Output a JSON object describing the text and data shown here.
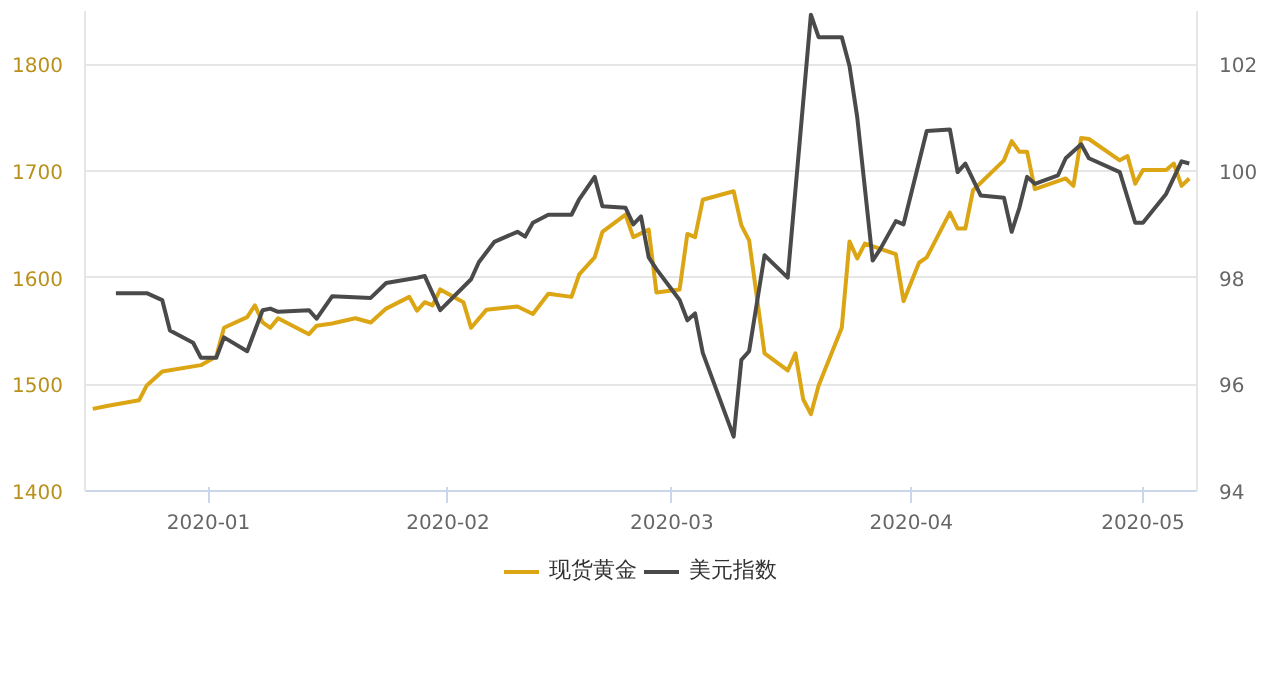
{
  "chart_data": {
    "type": "line",
    "xlim": [
      "2019-12-16",
      "2020-05-08"
    ],
    "xticks": [
      "2020-01",
      "2020-02",
      "2020-03",
      "2020-04",
      "2020-05"
    ],
    "ylim": [
      1400,
      1850
    ],
    "yticks": [
      1400,
      1500,
      1600,
      1700,
      1800
    ],
    "y2lim": [
      94,
      103
    ],
    "y2ticks": [
      94,
      96,
      98,
      100,
      102
    ],
    "grid": "y",
    "legend": "bottom",
    "marker": "none",
    "line_style": "solid",
    "series": [
      {
        "name": "现货黄金",
        "color": "#dba514",
        "x": [
          "2019-12-17",
          "2019-12-19",
          "2019-12-23",
          "2019-12-24",
          "2019-12-26",
          "2019-12-31",
          "2020-01-02",
          "2020-01-03",
          "2020-01-06",
          "2020-01-07",
          "2020-01-08",
          "2020-01-09",
          "2020-01-10",
          "2020-01-14",
          "2020-01-15",
          "2020-01-17",
          "2020-01-20",
          "2020-01-22",
          "2020-01-24",
          "2020-01-27",
          "2020-01-28",
          "2020-01-29",
          "2020-01-30",
          "2020-01-31",
          "2020-02-03",
          "2020-02-04",
          "2020-02-06",
          "2020-02-10",
          "2020-02-12",
          "2020-02-14",
          "2020-02-17",
          "2020-02-18",
          "2020-02-20",
          "2020-02-21",
          "2020-02-24",
          "2020-02-25",
          "2020-02-27",
          "2020-02-28",
          "2020-03-02",
          "2020-03-03",
          "2020-03-04",
          "2020-03-05",
          "2020-03-09",
          "2020-03-10",
          "2020-03-11",
          "2020-03-13",
          "2020-03-16",
          "2020-03-17",
          "2020-03-18",
          "2020-03-19",
          "2020-03-20",
          "2020-03-23",
          "2020-03-24",
          "2020-03-25",
          "2020-03-26",
          "2020-03-30",
          "2020-03-31",
          "2020-04-02",
          "2020-04-03",
          "2020-04-06",
          "2020-04-07",
          "2020-04-08",
          "2020-04-09",
          "2020-04-13",
          "2020-04-14",
          "2020-04-15",
          "2020-04-16",
          "2020-04-17",
          "2020-04-21",
          "2020-04-22",
          "2020-04-23",
          "2020-04-24",
          "2020-04-28",
          "2020-04-29",
          "2020-04-30",
          "2020-05-01",
          "2020-05-04",
          "2020-05-05",
          "2020-05-06",
          "2020-05-07"
        ],
        "values": [
          1477,
          1480,
          1485,
          1499,
          1512,
          1518,
          1526,
          1553,
          1563,
          1574,
          1558,
          1553,
          1562,
          1547,
          1555,
          1557,
          1562,
          1558,
          1571,
          1582,
          1569,
          1577,
          1574,
          1589,
          1577,
          1553,
          1570,
          1573,
          1566,
          1585,
          1582,
          1603,
          1619,
          1643,
          1659,
          1638,
          1645,
          1586,
          1589,
          1641,
          1638,
          1673,
          1681,
          1649,
          1635,
          1529,
          1513,
          1529,
          1486,
          1472,
          1499,
          1553,
          1634,
          1618,
          1632,
          1622,
          1578,
          1614,
          1619,
          1661,
          1646,
          1646,
          1682,
          1710,
          1728,
          1718,
          1718,
          1683,
          1693,
          1686,
          1731,
          1730,
          1710,
          1714,
          1688,
          1701,
          1701,
          1707,
          1686,
          1693
        ]
      },
      {
        "name": "美元指数",
        "color": "#4a4a4a",
        "axis": "y2",
        "x": [
          "2019-12-20",
          "2019-12-24",
          "2019-12-26",
          "2019-12-27",
          "2019-12-30",
          "2019-12-31",
          "2020-01-02",
          "2020-01-03",
          "2020-01-06",
          "2020-01-08",
          "2020-01-09",
          "2020-01-10",
          "2020-01-14",
          "2020-01-15",
          "2020-01-17",
          "2020-01-22",
          "2020-01-24",
          "2020-01-28",
          "2020-01-29",
          "2020-01-31",
          "2020-02-04",
          "2020-02-05",
          "2020-02-07",
          "2020-02-10",
          "2020-02-11",
          "2020-02-12",
          "2020-02-14",
          "2020-02-17",
          "2020-02-18",
          "2020-02-20",
          "2020-02-21",
          "2020-02-24",
          "2020-02-25",
          "2020-02-26",
          "2020-02-27",
          "2020-02-28",
          "2020-03-02",
          "2020-03-03",
          "2020-03-04",
          "2020-03-05",
          "2020-03-09",
          "2020-03-10",
          "2020-03-11",
          "2020-03-13",
          "2020-03-16",
          "2020-03-19",
          "2020-03-20",
          "2020-03-23",
          "2020-03-24",
          "2020-03-25",
          "2020-03-27",
          "2020-03-28",
          "2020-03-30",
          "2020-03-31",
          "2020-04-03",
          "2020-04-06",
          "2020-04-07",
          "2020-04-08",
          "2020-04-10",
          "2020-04-13",
          "2020-04-14",
          "2020-04-15",
          "2020-04-16",
          "2020-04-17",
          "2020-04-20",
          "2020-04-21",
          "2020-04-23",
          "2020-04-24",
          "2020-04-28",
          "2020-04-30",
          "2020-05-01",
          "2020-05-04",
          "2020-05-06",
          "2020-05-07"
        ],
        "values": [
          97.71,
          97.71,
          97.58,
          97.01,
          96.78,
          96.5,
          96.5,
          96.88,
          96.62,
          97.39,
          97.42,
          97.36,
          97.39,
          97.23,
          97.65,
          97.62,
          97.9,
          98.0,
          98.03,
          97.39,
          97.97,
          98.29,
          98.67,
          98.86,
          98.77,
          99.03,
          99.18,
          99.18,
          99.47,
          99.89,
          99.34,
          99.31,
          99.0,
          99.15,
          98.38,
          98.16,
          97.58,
          97.2,
          97.33,
          96.59,
          95.02,
          96.46,
          96.62,
          98.42,
          98.0,
          102.93,
          102.51,
          102.51,
          101.97,
          101.01,
          98.32,
          98.54,
          99.06,
          99.0,
          100.75,
          100.78,
          99.98,
          100.14,
          99.54,
          99.5,
          98.86,
          99.31,
          99.89,
          99.76,
          99.92,
          100.24,
          100.5,
          100.24,
          99.98,
          99.03,
          99.03,
          99.57,
          100.18,
          100.14
        ]
      }
    ]
  }
}
